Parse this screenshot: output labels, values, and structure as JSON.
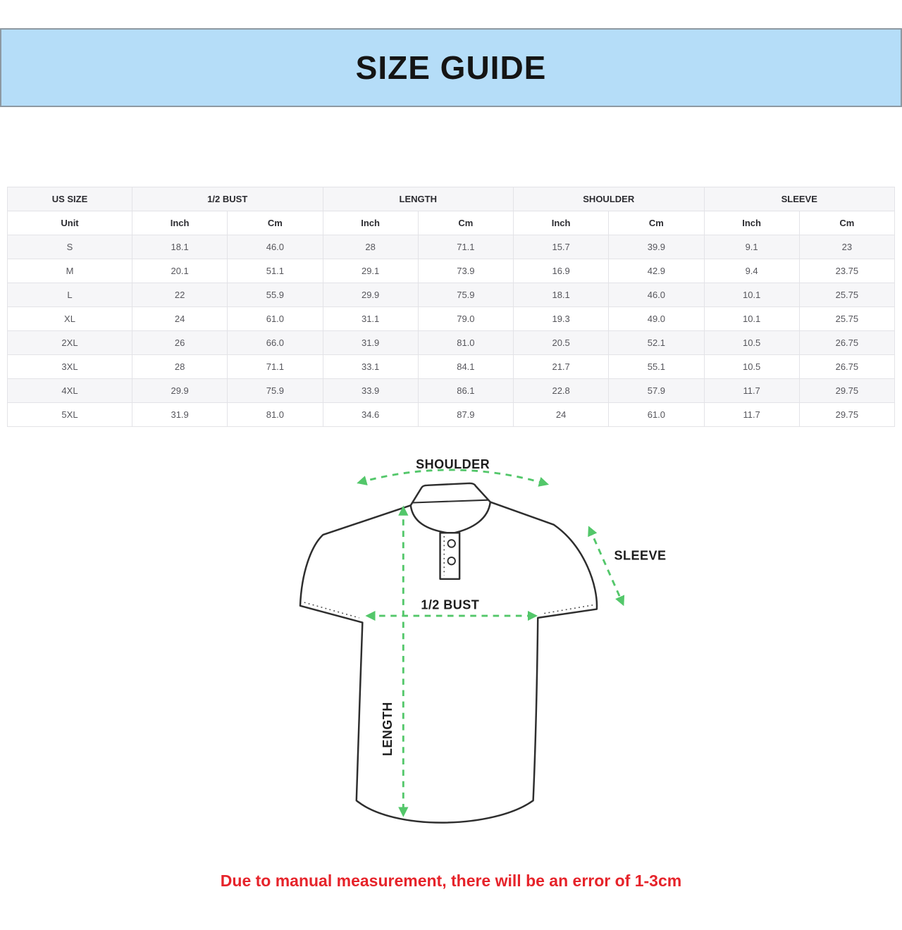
{
  "banner": {
    "title": "SIZE GUIDE",
    "bg_color": "#b5ddf8",
    "border_color": "#8d99a2"
  },
  "size_table": {
    "column_groups": [
      {
        "label": "US SIZE",
        "span": 1
      },
      {
        "label": "1/2 BUST",
        "span": 2
      },
      {
        "label": "LENGTH",
        "span": 2
      },
      {
        "label": "SHOULDER",
        "span": 2
      },
      {
        "label": "SLEEVE",
        "span": 2
      }
    ],
    "unit_row": [
      "Unit",
      "Inch",
      "Cm",
      "Inch",
      "Cm",
      "Inch",
      "Cm",
      "Inch",
      "Cm"
    ],
    "rows": [
      {
        "size": "S",
        "values": [
          "18.1",
          "46.0",
          "28",
          "71.1",
          "15.7",
          "39.9",
          "9.1",
          "23"
        ]
      },
      {
        "size": "M",
        "values": [
          "20.1",
          "51.1",
          "29.1",
          "73.9",
          "16.9",
          "42.9",
          "9.4",
          "23.75"
        ]
      },
      {
        "size": "L",
        "values": [
          "22",
          "55.9",
          "29.9",
          "75.9",
          "18.1",
          "46.0",
          "10.1",
          "25.75"
        ]
      },
      {
        "size": "XL",
        "values": [
          "24",
          "61.0",
          "31.1",
          "79.0",
          "19.3",
          "49.0",
          "10.1",
          "25.75"
        ]
      },
      {
        "size": "2XL",
        "values": [
          "26",
          "66.0",
          "31.9",
          "81.0",
          "20.5",
          "52.1",
          "10.5",
          "26.75"
        ]
      },
      {
        "size": "3XL",
        "values": [
          "28",
          "71.1",
          "33.1",
          "84.1",
          "21.7",
          "55.1",
          "10.5",
          "26.75"
        ]
      },
      {
        "size": "4XL",
        "values": [
          "29.9",
          "75.9",
          "33.9",
          "86.1",
          "22.8",
          "57.9",
          "11.7",
          "29.75"
        ]
      },
      {
        "size": "5XL",
        "values": [
          "31.9",
          "81.0",
          "34.6",
          "87.9",
          "24",
          "61.0",
          "11.7",
          "29.75"
        ]
      }
    ]
  },
  "diagram": {
    "shoulder_label": "SHOULDER",
    "sleeve_label": "SLEEVE",
    "bust_label": "1/2 BUST",
    "length_label": "LENGTH",
    "arrow_color": "#53c76a",
    "outline_color": "#2e2e2e"
  },
  "note": {
    "text": "Due to manual measurement, there will be an error of 1-3cm",
    "color": "#e6232a"
  }
}
